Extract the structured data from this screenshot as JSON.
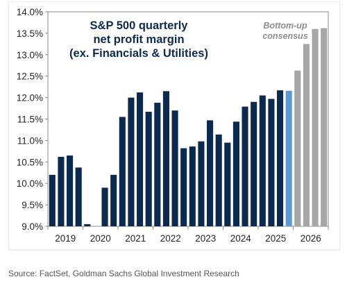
{
  "chart_data": {
    "type": "bar",
    "title_lines": [
      "S&P 500 quarterly",
      "net profit margin",
      "(ex. Financials & Utilities)"
    ],
    "annotation_lines": [
      "Bottom-up",
      "consensus"
    ],
    "xlabel": "",
    "ylabel": "",
    "ylim": [
      9.0,
      14.0
    ],
    "yticks": [
      "9.0%",
      "9.5%",
      "10.0%",
      "10.5%",
      "11.0%",
      "11.5%",
      "12.0%",
      "12.5%",
      "13.0%",
      "13.5%",
      "14.0%"
    ],
    "ytick_values": [
      9.0,
      9.5,
      10.0,
      10.5,
      11.0,
      11.5,
      12.0,
      12.5,
      13.0,
      13.5,
      14.0
    ],
    "year_labels": [
      "2019",
      "2020",
      "2021",
      "2022",
      "2023",
      "2024",
      "2025",
      "2026"
    ],
    "grid": false,
    "colors": {
      "actual": "#0b2a4f",
      "latest": "#5b9bd5",
      "consensus": "#a6a6a6",
      "title": "#0b2a4f",
      "annotation": "#8c8c8c"
    },
    "series": [
      {
        "kind": "actual",
        "values": [
          10.2,
          10.62,
          10.65,
          10.37,
          9.05,
          8.9,
          9.9,
          10.2,
          11.55,
          12.0,
          12.12,
          11.67,
          11.88,
          12.15,
          11.7,
          10.82,
          10.86,
          10.98,
          11.47,
          11.14,
          10.95,
          11.44,
          11.79,
          11.9,
          12.05,
          11.97,
          12.17
        ]
      },
      {
        "kind": "latest",
        "values": [
          12.16
        ]
      },
      {
        "kind": "consensus",
        "values": [
          12.63,
          13.25,
          13.6,
          13.62
        ]
      }
    ]
  },
  "source": "Source: FactSet, Goldman Sachs Global Investment Research"
}
